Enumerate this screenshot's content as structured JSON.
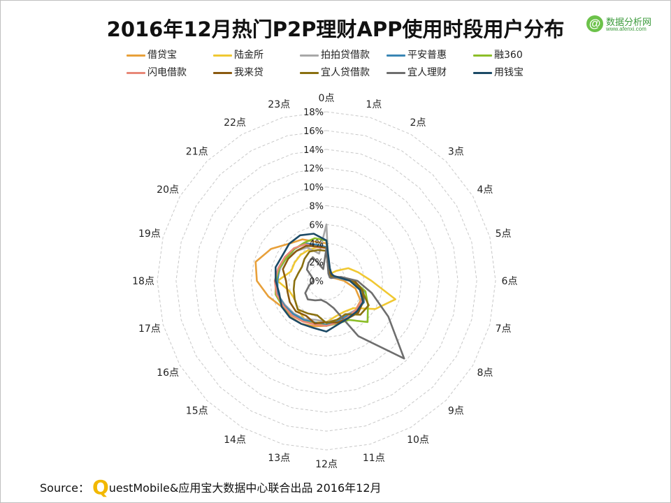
{
  "title": "2016年12月热门P2P理财APP使用时段用户分布",
  "logo": {
    "name": "数据分析网",
    "url": "www.afenxi.com",
    "icon": "at-sign-icon"
  },
  "source": {
    "prefix": "Source：",
    "brand_q": "Q",
    "text": "uestMobile&应用宝大数据中心联合出品 2016年12月"
  },
  "chart_data": {
    "type": "radar",
    "title": "2016年12月热门P2P理财APP使用时段用户分布",
    "categories": [
      "0点",
      "1点",
      "2点",
      "3点",
      "4点",
      "5点",
      "6点",
      "7点",
      "8点",
      "9点",
      "10点",
      "11点",
      "12点",
      "13点",
      "14点",
      "15点",
      "16点",
      "17点",
      "18点",
      "19点",
      "20点",
      "21点",
      "22点",
      "23点"
    ],
    "radial_ticks": [
      "0%",
      "2%",
      "4%",
      "6%",
      "8%",
      "10%",
      "12%",
      "14%",
      "16%",
      "18%"
    ],
    "ylim": [
      0,
      18
    ],
    "grid": true,
    "legend_position": "top",
    "series": [
      {
        "name": "借贷宝",
        "color": "#e8a03a",
        "values": [
          4.0,
          1.2,
          0.8,
          0.7,
          0.7,
          1.0,
          1.9,
          3.2,
          4.2,
          4.4,
          4.5,
          4.6,
          4.8,
          5.0,
          5.3,
          5.4,
          5.5,
          6.4,
          7.4,
          7.8,
          6.8,
          5.6,
          5.1,
          4.3
        ]
      },
      {
        "name": "陆金所",
        "color": "#f0c832",
        "values": [
          3.5,
          1.0,
          0.9,
          1.5,
          2.7,
          3.5,
          4.8,
          7.6,
          6.0,
          4.1,
          3.8,
          3.9,
          4.4,
          4.6,
          4.7,
          4.3,
          3.9,
          4.1,
          5.2,
          3.9,
          3.9,
          3.9,
          3.8,
          3.7
        ]
      },
      {
        "name": "拍拍贷借款",
        "color": "#a8a8a8",
        "values": [
          6.0,
          1.0,
          0.8,
          0.8,
          0.7,
          1.2,
          2.6,
          4.0,
          4.5,
          4.4,
          4.2,
          4.3,
          4.4,
          4.3,
          4.7,
          4.9,
          5.1,
          5.4,
          5.3,
          5.1,
          4.9,
          4.5,
          4.1,
          3.0
        ]
      },
      {
        "name": "平安普惠",
        "color": "#3a86b4",
        "values": [
          3.6,
          1.1,
          0.8,
          0.7,
          0.8,
          1.3,
          2.8,
          4.1,
          4.6,
          4.5,
          4.3,
          4.5,
          4.7,
          4.6,
          4.8,
          5.0,
          5.2,
          5.4,
          5.2,
          5.2,
          4.9,
          4.8,
          4.6,
          4.0
        ]
      },
      {
        "name": "融360",
        "color": "#8cbe28",
        "values": [
          4.3,
          1.3,
          0.9,
          0.8,
          0.8,
          1.4,
          2.9,
          4.3,
          5.1,
          6.2,
          4.8,
          4.7,
          4.8,
          4.7,
          5.0,
          5.2,
          5.4,
          5.6,
          5.4,
          5.2,
          4.9,
          4.8,
          4.7,
          4.7
        ]
      },
      {
        "name": "闪电借款",
        "color": "#e88878",
        "values": [
          3.5,
          1.1,
          0.8,
          0.7,
          0.9,
          1.5,
          3.0,
          4.0,
          4.3,
          4.4,
          4.5,
          4.6,
          4.8,
          4.8,
          5.0,
          5.2,
          5.3,
          5.5,
          5.5,
          5.3,
          5.1,
          4.9,
          4.5,
          3.7
        ]
      },
      {
        "name": "我来贷",
        "color": "#8a5a10",
        "values": [
          3.5,
          1.0,
          0.8,
          0.7,
          0.9,
          1.5,
          3.0,
          4.0,
          4.5,
          4.8,
          4.6,
          4.6,
          4.4,
          4.7,
          4.3,
          4.6,
          4.5,
          4.3,
          4.3,
          4.8,
          4.7,
          4.5,
          4.3,
          3.8
        ]
      },
      {
        "name": "宜人贷借款",
        "color": "#8a7010",
        "values": [
          3.2,
          0.9,
          0.7,
          0.6,
          0.8,
          1.4,
          2.7,
          3.9,
          5.2,
          5.1,
          4.1,
          4.3,
          4.5,
          3.8,
          4.0,
          4.3,
          3.9,
          3.6,
          3.4,
          3.1,
          3.0,
          3.3,
          3.6,
          3.4
        ]
      },
      {
        "name": "宜人理财",
        "color": "#6e6e6e",
        "values": [
          3.5,
          0.8,
          0.6,
          0.5,
          0.6,
          1.6,
          3.3,
          5.0,
          7.6,
          11.7,
          6.8,
          3.0,
          2.3,
          2.1,
          2.4,
          2.8,
          2.6,
          1.9,
          1.4,
          1.6,
          2.4,
          2.7,
          2.9,
          1.3
        ]
      },
      {
        "name": "用钱宝",
        "color": "#1c4a66",
        "values": [
          4.3,
          1.4,
          1.0,
          0.9,
          1.0,
          1.4,
          2.5,
          3.7,
          4.5,
          4.6,
          4.6,
          4.8,
          5.4,
          5.2,
          5.3,
          5.5,
          5.5,
          5.2,
          5.4,
          5.6,
          5.4,
          5.6,
          5.6,
          5.2
        ]
      }
    ]
  }
}
